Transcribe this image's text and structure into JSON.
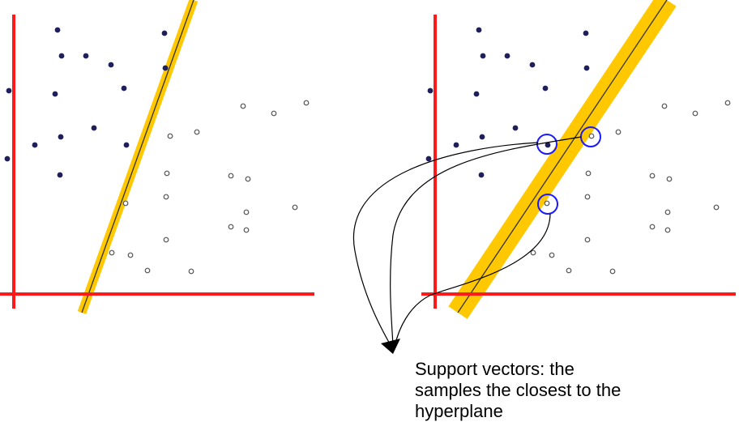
{
  "caption": {
    "lines": [
      "Support vectors: the",
      "samples the closest to the",
      "hyperplane"
    ]
  },
  "colors": {
    "axis": "#ff1a1a",
    "margin_band": "#ffc800",
    "hyperplane": "#333333",
    "class_a_point": "#1f1f5c",
    "class_b_point": "#555555",
    "support_vector_circle": "#1a1aff",
    "arrow": "#000000"
  },
  "icons": {
    "class_a": "filled-dot",
    "class_b": "hollow-ring",
    "support_vector_marker": "blue-circle",
    "pointer": "arrowhead"
  },
  "panels": [
    {
      "name": "narrow-margin-hyperplane",
      "support_vector_count": 0
    },
    {
      "name": "wide-margin-hyperplane",
      "support_vector_count": 3
    }
  ]
}
